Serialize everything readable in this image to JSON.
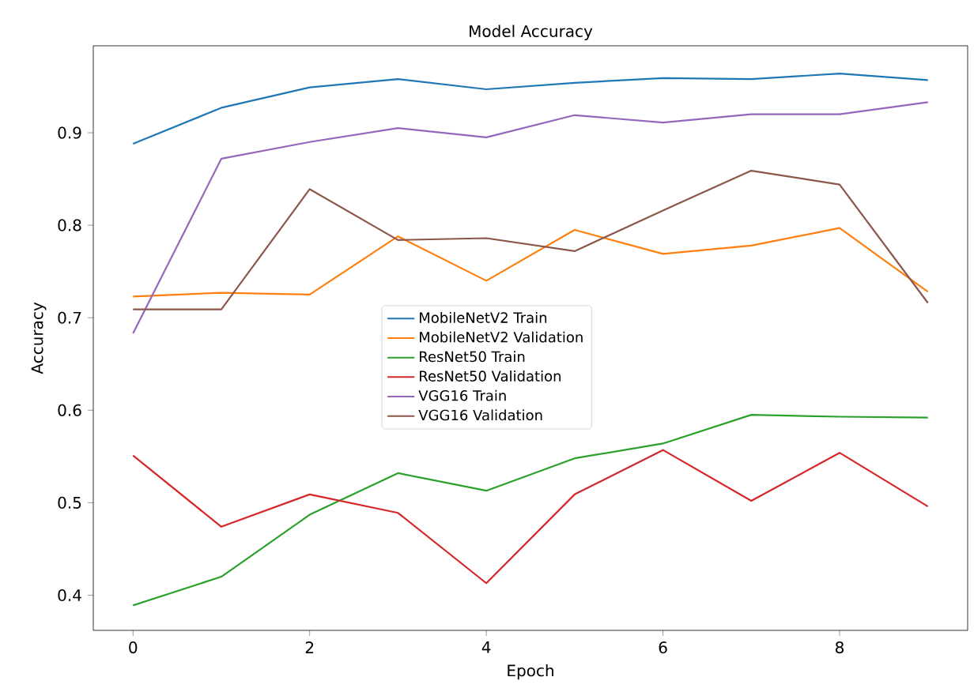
{
  "chart_data": {
    "type": "line",
    "title": "Model Accuracy",
    "xlabel": "Epoch",
    "ylabel": "Accuracy",
    "x": [
      0,
      1,
      2,
      3,
      4,
      5,
      6,
      7,
      8,
      9
    ],
    "xlim": [
      -0.45,
      9.45
    ],
    "xticks": [
      0,
      2,
      4,
      6,
      8
    ],
    "ylim": [
      0.362,
      0.994
    ],
    "yticks": [
      0.4,
      0.5,
      0.6,
      0.7,
      0.8,
      0.9
    ],
    "legend": "center",
    "grid": false,
    "series": [
      {
        "name": "MobileNetV2 Train",
        "color": "#1f77b4",
        "values": [
          0.888,
          0.927,
          0.949,
          0.958,
          0.947,
          0.954,
          0.959,
          0.958,
          0.964,
          0.957
        ]
      },
      {
        "name": "MobileNetV2 Validation",
        "color": "#ff7f0e",
        "values": [
          0.723,
          0.727,
          0.725,
          0.788,
          0.74,
          0.795,
          0.769,
          0.778,
          0.797,
          0.728
        ]
      },
      {
        "name": "ResNet50 Train",
        "color": "#2ca02c",
        "values": [
          0.389,
          0.42,
          0.487,
          0.532,
          0.513,
          0.548,
          0.564,
          0.595,
          0.593,
          0.592
        ]
      },
      {
        "name": "ResNet50 Validation",
        "color": "#d62728",
        "values": [
          0.551,
          0.474,
          0.509,
          0.489,
          0.413,
          0.509,
          0.557,
          0.502,
          0.554,
          0.496
        ]
      },
      {
        "name": "VGG16 Train",
        "color": "#9467bd",
        "values": [
          0.683,
          0.872,
          0.89,
          0.905,
          0.895,
          0.919,
          0.911,
          0.92,
          0.92,
          0.933
        ]
      },
      {
        "name": "VGG16 Validation",
        "color": "#8c564b",
        "values": [
          0.709,
          0.709,
          0.839,
          0.784,
          0.786,
          0.772,
          0.816,
          0.859,
          0.844,
          0.716
        ]
      }
    ]
  }
}
